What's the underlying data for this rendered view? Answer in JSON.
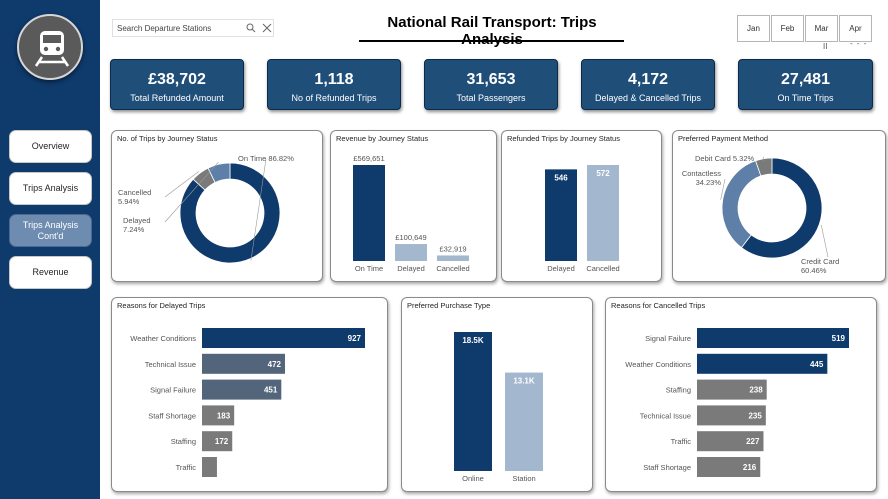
{
  "search": {
    "placeholder": "Search Departure Stations"
  },
  "header": {
    "title": "National Rail Transport: Trips Analysis"
  },
  "months": [
    "Jan",
    "Feb",
    "Mar",
    "Apr"
  ],
  "slicer_extra": "II",
  "nav": [
    {
      "label": "Overview"
    },
    {
      "label": "Trips Analysis"
    },
    {
      "label": "Trips Analysis Cont'd"
    },
    {
      "label": "Revenue"
    }
  ],
  "kpis": [
    {
      "value": "£38,702",
      "label": "Total Refunded Amount"
    },
    {
      "value": "1,118",
      "label": "No of Refunded Trips"
    },
    {
      "value": "31,653",
      "label": "Total Passengers"
    },
    {
      "value": "4,172",
      "label": "Delayed & Cancelled Trips"
    },
    {
      "value": "27,481",
      "label": "On Time Trips"
    }
  ],
  "colors": {
    "dark": "#0e3a6c",
    "mid": "#5d7fa8",
    "light": "#a3b7cf",
    "grey": "#7a7a7a",
    "slate": "#53657a"
  },
  "chart_data": [
    {
      "id": "trips_status",
      "type": "pie",
      "title": "No. of Trips by Journey Status",
      "slices": [
        {
          "label": "On Time",
          "pct_label": "86.82%",
          "value": 86.82,
          "color": "#0e3a6c"
        },
        {
          "label": "Cancelled",
          "pct_label": "5.94%",
          "value": 5.94,
          "color": "#7a7a7a"
        },
        {
          "label": "Delayed",
          "pct_label": "7.24%",
          "value": 7.24,
          "color": "#5d7fa8"
        }
      ]
    },
    {
      "id": "revenue_status",
      "type": "bar",
      "title": "Revenue by Journey Status",
      "categories": [
        "On Time",
        "Delayed",
        "Cancelled"
      ],
      "values": [
        569651,
        100649,
        32919
      ],
      "labels": [
        "£569,651",
        "£100,649",
        "£32,919"
      ],
      "colors": [
        "#0e3a6c",
        "#a3b7cf",
        "#a3b7cf"
      ]
    },
    {
      "id": "refunded_status",
      "type": "bar",
      "title": "Refunded Trips by Journey Status",
      "categories": [
        "Delayed",
        "Cancelled"
      ],
      "values": [
        546,
        572
      ],
      "labels": [
        "546",
        "572"
      ],
      "colors": [
        "#0e3a6c",
        "#a3b7cf"
      ]
    },
    {
      "id": "payment_method",
      "type": "pie",
      "title": "Preferred Payment Method",
      "slices": [
        {
          "label": "Credit Card",
          "pct_label": "60.46%",
          "value": 60.46,
          "color": "#0e3a6c"
        },
        {
          "label": "Contactless",
          "pct_label": "34.23%",
          "value": 34.23,
          "color": "#5d7fa8"
        },
        {
          "label": "Debit Card",
          "pct_label": "5.32%",
          "value": 5.32,
          "color": "#7a7a7a"
        }
      ]
    },
    {
      "id": "delay_reasons",
      "type": "bar",
      "orientation": "horizontal",
      "title": "Reasons for Delayed Trips",
      "categories": [
        "Weather Conditions",
        "Technical Issue",
        "Signal Failure",
        "Staff Shortage",
        "Staffing",
        "Traffic"
      ],
      "values": [
        927,
        472,
        451,
        183,
        172,
        85
      ],
      "labels": [
        "927",
        "472",
        "451",
        "183",
        "172",
        ""
      ]
    },
    {
      "id": "purchase_type",
      "type": "bar",
      "title": "Preferred Purchase Type",
      "categories": [
        "Online",
        "Station"
      ],
      "values": [
        18500,
        13100
      ],
      "labels": [
        "18.5K",
        "13.1K"
      ],
      "colors": [
        "#0e3a6c",
        "#a3b7cf"
      ]
    },
    {
      "id": "cancel_reasons",
      "type": "bar",
      "orientation": "horizontal",
      "title": "Reasons for Cancelled Trips",
      "categories": [
        "Signal Failure",
        "Weather Conditions",
        "Staffing",
        "Technical Issue",
        "Traffic",
        "Staff Shortage"
      ],
      "values": [
        519,
        445,
        238,
        235,
        227,
        216
      ],
      "labels": [
        "519",
        "445",
        "238",
        "235",
        "227",
        "216"
      ]
    }
  ]
}
